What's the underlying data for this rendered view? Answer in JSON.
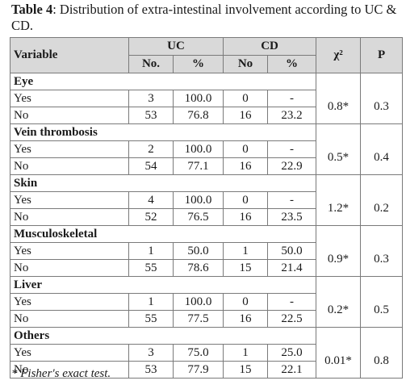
{
  "caption": {
    "label": "Table 4",
    "text": ": Distribution of extra-intestinal involvement according to UC & CD."
  },
  "header": {
    "variable": "Variable",
    "uc": "UC",
    "cd": "CD",
    "chi": "χ²",
    "p": "P",
    "no": "No.",
    "pct": "%",
    "no_cd": "No",
    "pct_cd": "%"
  },
  "groups": [
    {
      "name": "Eye",
      "chi": "0.8*",
      "p": "0.3",
      "rows": [
        {
          "label": "Yes",
          "uc_no": "3",
          "uc_pct": "100.0",
          "cd_no": "0",
          "cd_pct": "-"
        },
        {
          "label": "No",
          "uc_no": "53",
          "uc_pct": "76.8",
          "cd_no": "16",
          "cd_pct": "23.2"
        }
      ]
    },
    {
      "name": "Vein thrombosis",
      "chi": "0.5*",
      "p": "0.4",
      "rows": [
        {
          "label": "Yes",
          "uc_no": "2",
          "uc_pct": "100.0",
          "cd_no": "0",
          "cd_pct": "-"
        },
        {
          "label": "No",
          "uc_no": "54",
          "uc_pct": "77.1",
          "cd_no": "16",
          "cd_pct": "22.9"
        }
      ]
    },
    {
      "name": "Skin",
      "chi": "1.2*",
      "p": "0.2",
      "rows": [
        {
          "label": "Yes",
          "uc_no": "4",
          "uc_pct": "100.0",
          "cd_no": "0",
          "cd_pct": "-"
        },
        {
          "label": "No",
          "uc_no": "52",
          "uc_pct": "76.5",
          "cd_no": "16",
          "cd_pct": "23.5"
        }
      ]
    },
    {
      "name": "Musculoskeletal",
      "chi": "0.9*",
      "p": "0.3",
      "rows": [
        {
          "label": "Yes",
          "uc_no": "1",
          "uc_pct": "50.0",
          "cd_no": "1",
          "cd_pct": "50.0"
        },
        {
          "label": "No",
          "uc_no": "55",
          "uc_pct": "78.6",
          "cd_no": "15",
          "cd_pct": "21.4"
        }
      ]
    },
    {
      "name": "Liver",
      "chi": "0.2*",
      "p": "0.5",
      "rows": [
        {
          "label": "Yes",
          "uc_no": "1",
          "uc_pct": "100.0",
          "cd_no": "0",
          "cd_pct": "-"
        },
        {
          "label": "No",
          "uc_no": "55",
          "uc_pct": "77.5",
          "cd_no": "16",
          "cd_pct": "22.5"
        }
      ]
    },
    {
      "name": "Others",
      "chi": "0.01*",
      "p": "0.8",
      "rows": [
        {
          "label": "Yes",
          "uc_no": "3",
          "uc_pct": "75.0",
          "cd_no": "1",
          "cd_pct": "25.0"
        },
        {
          "label": "No",
          "uc_no": "53",
          "uc_pct": "77.9",
          "cd_no": "15",
          "cd_pct": "22.1"
        }
      ]
    }
  ],
  "footnote": "* Fisher's exact test."
}
